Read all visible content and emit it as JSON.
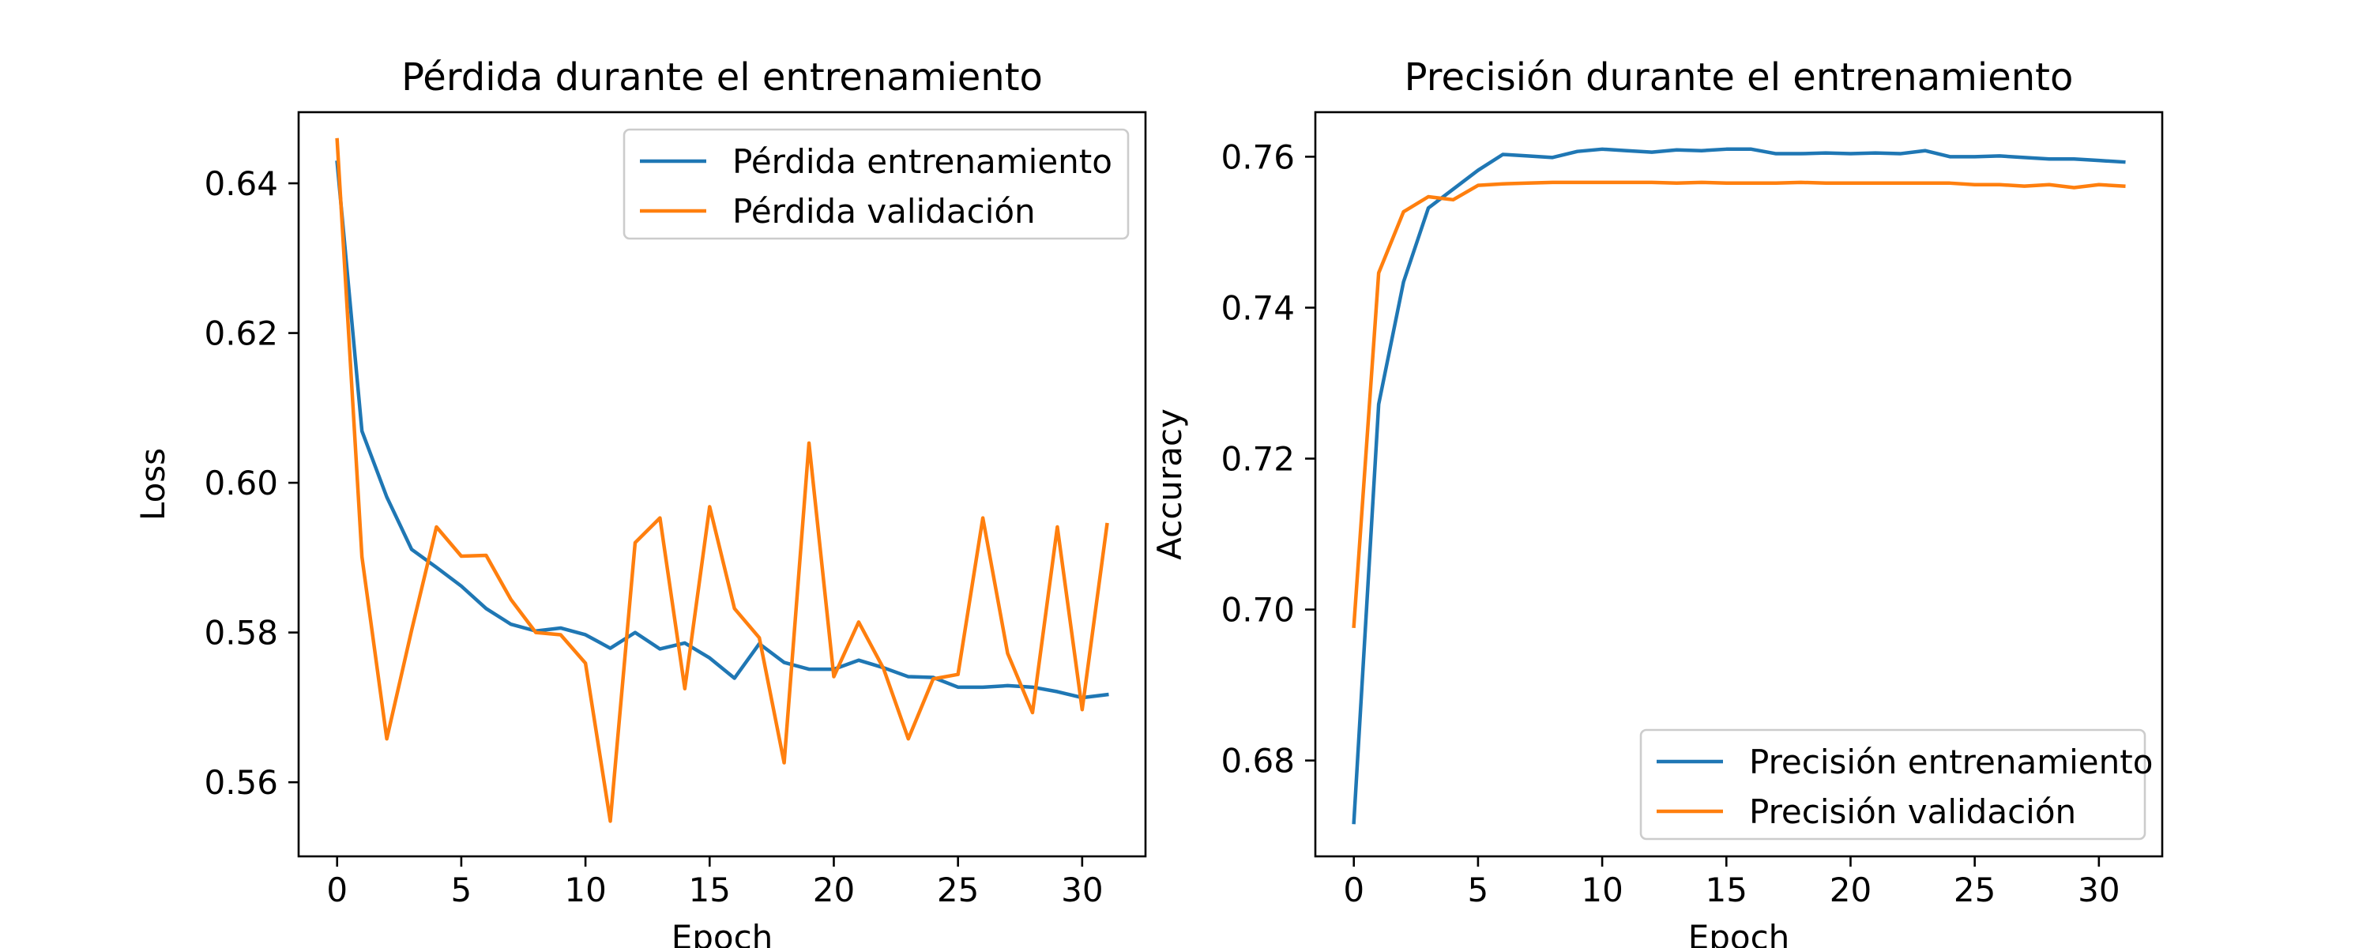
{
  "chart_data": [
    {
      "type": "line",
      "title": "Pérdida durante el entrenamiento",
      "xlabel": "Epoch",
      "ylabel": "Loss",
      "xlim": [
        -1.55,
        32.55
      ],
      "ylim": [
        0.5501,
        0.6495
      ],
      "xticks": [
        0,
        5,
        10,
        15,
        20,
        25,
        30
      ],
      "yticks": [
        0.56,
        0.58,
        0.6,
        0.62,
        0.64
      ],
      "ytick_decimals": 2,
      "legend_position": "upper right",
      "grid": false,
      "x": [
        0,
        1,
        2,
        3,
        4,
        5,
        6,
        7,
        8,
        9,
        10,
        11,
        12,
        13,
        14,
        15,
        16,
        17,
        18,
        19,
        20,
        21,
        22,
        23,
        24,
        25,
        26,
        27,
        28,
        29,
        30,
        31
      ],
      "series": [
        {
          "name": "Pérdida entrenamiento",
          "color": "#1f77b4",
          "values": [
            0.6428,
            0.6069,
            0.5981,
            0.5911,
            0.5887,
            0.5862,
            0.5832,
            0.5811,
            0.5802,
            0.5806,
            0.5797,
            0.5779,
            0.58,
            0.5778,
            0.5786,
            0.5766,
            0.5739,
            0.5785,
            0.576,
            0.5751,
            0.5751,
            0.5763,
            0.5753,
            0.5741,
            0.574,
            0.5727,
            0.5727,
            0.5729,
            0.5727,
            0.5721,
            0.5713,
            0.5717
          ]
        },
        {
          "name": "Pérdida validación",
          "color": "#ff7f0e",
          "values": [
            0.6458,
            0.5901,
            0.5658,
            0.5803,
            0.5941,
            0.5902,
            0.5903,
            0.5844,
            0.58,
            0.5797,
            0.5759,
            0.5548,
            0.592,
            0.5953,
            0.5725,
            0.5968,
            0.5832,
            0.5793,
            0.5626,
            0.6053,
            0.5741,
            0.5814,
            0.5752,
            0.5658,
            0.5738,
            0.5744,
            0.5953,
            0.5772,
            0.5693,
            0.5941,
            0.5697,
            0.5944
          ]
        }
      ]
    },
    {
      "type": "line",
      "title": "Precisión durante el entrenamiento",
      "xlabel": "Epoch",
      "ylabel": "Accuracy",
      "xlim": [
        -1.55,
        32.55
      ],
      "ylim": [
        0.6673,
        0.7659
      ],
      "xticks": [
        0,
        5,
        10,
        15,
        20,
        25,
        30
      ],
      "yticks": [
        0.68,
        0.7,
        0.72,
        0.74,
        0.76
      ],
      "ytick_decimals": 2,
      "legend_position": "lower right",
      "grid": false,
      "x": [
        0,
        1,
        2,
        3,
        4,
        5,
        6,
        7,
        8,
        9,
        10,
        11,
        12,
        13,
        14,
        15,
        16,
        17,
        18,
        19,
        20,
        21,
        22,
        23,
        24,
        25,
        26,
        27,
        28,
        29,
        30,
        31
      ],
      "series": [
        {
          "name": "Precisión entrenamiento",
          "color": "#1f77b4",
          "values": [
            0.6718,
            0.7272,
            0.7434,
            0.7532,
            0.7557,
            0.7582,
            0.7603,
            0.7601,
            0.7599,
            0.7607,
            0.761,
            0.7608,
            0.7606,
            0.7609,
            0.7608,
            0.761,
            0.761,
            0.7604,
            0.7604,
            0.7605,
            0.7604,
            0.7605,
            0.7604,
            0.7608,
            0.76,
            0.76,
            0.7601,
            0.7599,
            0.7597,
            0.7597,
            0.7595,
            0.7593
          ]
        },
        {
          "name": "Precisión validación",
          "color": "#ff7f0e",
          "values": [
            0.6978,
            0.7446,
            0.7527,
            0.7547,
            0.7543,
            0.7562,
            0.7564,
            0.7565,
            0.7566,
            0.7566,
            0.7566,
            0.7566,
            0.7566,
            0.7565,
            0.7566,
            0.7565,
            0.7565,
            0.7565,
            0.7566,
            0.7565,
            0.7565,
            0.7565,
            0.7565,
            0.7565,
            0.7565,
            0.7563,
            0.7563,
            0.7561,
            0.7563,
            0.7559,
            0.7563,
            0.7561
          ]
        }
      ]
    }
  ]
}
